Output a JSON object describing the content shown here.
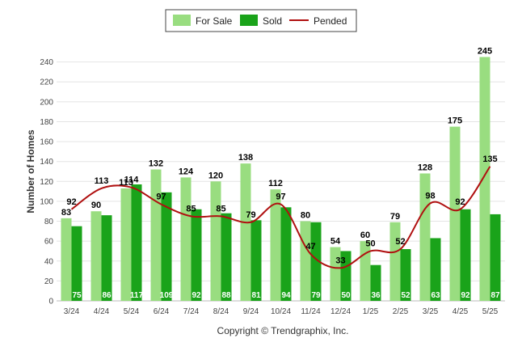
{
  "chart_data": {
    "type": "bar",
    "ylabel": "Number of Homes",
    "ylim": [
      0,
      260
    ],
    "yticks": [
      0,
      20,
      40,
      60,
      80,
      100,
      120,
      140,
      160,
      180,
      200,
      220,
      240
    ],
    "grid": true,
    "legend_position": "top-center",
    "categories": [
      "3/24",
      "4/24",
      "5/24",
      "6/24",
      "7/24",
      "8/24",
      "9/24",
      "10/24",
      "11/24",
      "12/24",
      "1/25",
      "2/25",
      "3/25",
      "4/25",
      "5/25"
    ],
    "series": [
      {
        "name": "For Sale",
        "kind": "bar",
        "color": "#99dd80",
        "values": [
          83,
          90,
          113,
          132,
          124,
          120,
          138,
          112,
          80,
          54,
          60,
          79,
          128,
          175,
          245
        ]
      },
      {
        "name": "Sold",
        "kind": "bar",
        "color": "#1aa31a",
        "values": [
          75,
          86,
          117,
          109,
          92,
          88,
          81,
          94,
          79,
          50,
          36,
          52,
          63,
          92,
          87
        ]
      },
      {
        "name": "Pended",
        "kind": "line",
        "color": "#b01010",
        "values": [
          92,
          113,
          114,
          97,
          85,
          85,
          79,
          97,
          47,
          33,
          50,
          52,
          98,
          92,
          135
        ]
      }
    ]
  },
  "footer": {
    "copyright": "Copyright © Trendgraphix, Inc."
  }
}
